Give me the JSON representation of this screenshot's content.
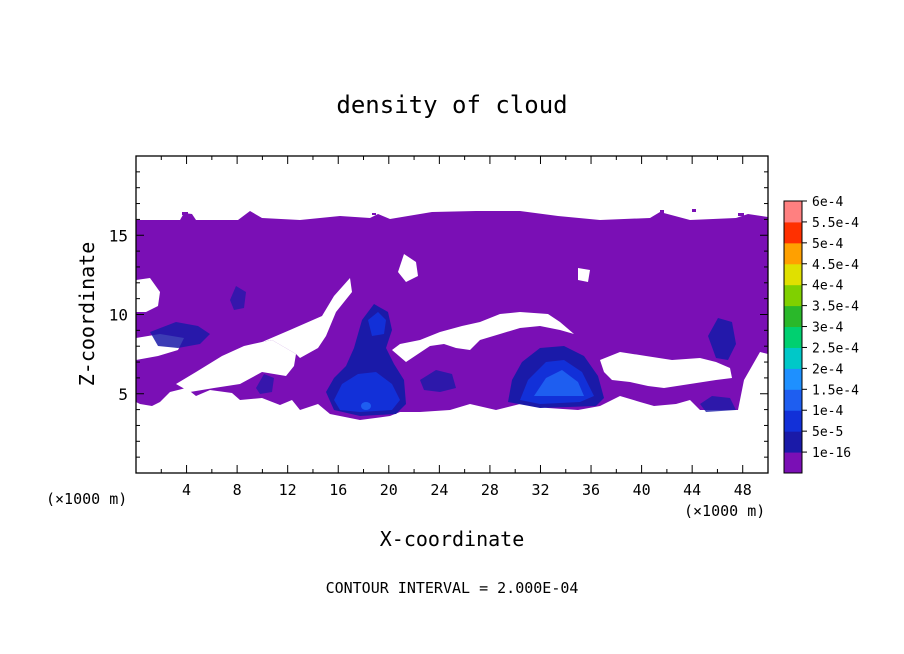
{
  "chart_data": {
    "type": "heatmap",
    "title": "density of cloud",
    "xlabel": "X-coordinate",
    "ylabel": "Z-coordinate",
    "x_unit_left": "(×1000 m)",
    "x_unit_right": "(×1000 m)",
    "footer": "CONTOUR INTERVAL = 2.000E-04",
    "xlim": [
      0,
      50
    ],
    "ylim": [
      0,
      20
    ],
    "x_ticks": [
      4,
      8,
      12,
      16,
      20,
      24,
      28,
      32,
      36,
      40,
      44,
      48
    ],
    "x_tick_labels": [
      "4",
      "8",
      "12",
      "16",
      "20",
      "24",
      "28",
      "32",
      "36",
      "40",
      "44",
      "48"
    ],
    "y_ticks": [
      5,
      10,
      15
    ],
    "y_tick_labels": [
      "5",
      "10",
      "15"
    ],
    "grid": false,
    "colorbar": {
      "placement": "right",
      "levels": [
        "1e-16",
        "5e-5",
        "1e-4",
        "1.5e-4",
        "2e-4",
        "2.5e-4",
        "3e-4",
        "3.5e-4",
        "4e-4",
        "4.5e-4",
        "5e-4",
        "5.5e-4",
        "6e-4"
      ],
      "colors": [
        "#7a0fb5",
        "#1a1aa8",
        "#1230d8",
        "#1e5ef0",
        "#1e90ff",
        "#00c8c8",
        "#00d070",
        "#2ab82a",
        "#80d000",
        "#e0e000",
        "#ffa000",
        "#ff3000",
        "#ff8080"
      ]
    },
    "cloud_layer": {
      "z_base_approx": 4,
      "z_top_approx": 16,
      "x_extent": [
        0,
        50
      ],
      "background_level": "1e-16"
    },
    "cores": [
      {
        "x": 18.5,
        "z": 5.0,
        "max_value": 0.00015
      },
      {
        "x": 19.0,
        "z": 9.5,
        "max_value": 0.0001
      },
      {
        "x": 34.0,
        "z": 5.5,
        "max_value": 0.00015
      },
      {
        "x": 46.0,
        "z": 8.5,
        "max_value": 0.0001
      },
      {
        "x": 8.0,
        "z": 11.0,
        "max_value": 5e-05
      },
      {
        "x": 23.5,
        "z": 6.0,
        "max_value": 5e-05
      }
    ]
  }
}
